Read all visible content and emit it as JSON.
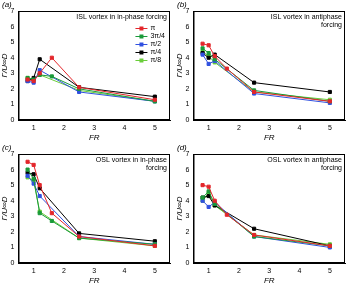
{
  "chart_data": [
    {
      "type": "line",
      "title": "(a)",
      "annotations": [
        "ISL vortex in in-phase forcing"
      ],
      "x_label": "FR",
      "y_label": "Γ/U∞D",
      "xlim": [
        0.5,
        5.5
      ],
      "xticks": [
        1,
        2,
        3,
        4,
        5
      ],
      "ylim": [
        0,
        7
      ],
      "yticks": [
        0,
        1,
        2,
        3,
        4,
        5,
        6,
        7
      ],
      "grid": false,
      "legend": "top right",
      "series": [
        {
          "name": "π",
          "color": "#e3262b",
          "marker": "square",
          "x": [
            0.8,
            1.0,
            1.2,
            1.6,
            2.5,
            5
          ],
          "values": [
            2.6,
            2.5,
            3.0,
            4.0,
            2.1,
            1.3
          ]
        },
        {
          "name": "3π/4",
          "color": "#1a9a3a",
          "marker": "square",
          "x": [
            0.8,
            1.0,
            1.2,
            1.6,
            2.5,
            5
          ],
          "values": [
            2.7,
            2.6,
            2.9,
            2.8,
            2.0,
            1.2
          ]
        },
        {
          "name": "π/2",
          "color": "#3050e0",
          "marker": "square",
          "x": [
            0.8,
            1.0,
            1.2,
            2.5,
            5
          ],
          "values": [
            2.5,
            2.4,
            3.2,
            1.8,
            1.2
          ]
        },
        {
          "name": "π/4",
          "color": "#000000",
          "marker": "square",
          "x": [
            0.8,
            1.0,
            1.2,
            2.5,
            5
          ],
          "values": [
            2.5,
            2.7,
            3.9,
            2.1,
            1.5
          ]
        },
        {
          "name": "π/8",
          "color": "#6acd3a",
          "marker": "square",
          "x": [
            0.8,
            1.0,
            1.2,
            2.5,
            5
          ],
          "values": [
            2.7,
            2.6,
            2.9,
            1.9,
            1.2
          ]
        }
      ]
    },
    {
      "type": "line",
      "title": "(b)",
      "annotations": [
        "ISL vortex in antiphase forcing"
      ],
      "x_label": "FR",
      "y_label": "Γ/U∞D",
      "xlim": [
        0.5,
        5.5
      ],
      "xticks": [
        1,
        2,
        3,
        4,
        5
      ],
      "ylim": [
        0,
        7
      ],
      "yticks": [
        0,
        1,
        2,
        3,
        4,
        5,
        6,
        7
      ],
      "grid": false,
      "series": [
        {
          "name": "π",
          "color": "#e3262b",
          "marker": "square",
          "x": [
            0.8,
            1.0,
            1.2,
            1.6,
            2.5,
            5
          ],
          "values": [
            4.9,
            4.8,
            4.1,
            3.3,
            1.8,
            1.2
          ]
        },
        {
          "name": "3π/4",
          "color": "#1a9a3a",
          "marker": "square",
          "x": [
            0.8,
            1.0,
            1.2,
            2.5,
            5
          ],
          "values": [
            4.6,
            4.3,
            3.9,
            1.9,
            1.2
          ]
        },
        {
          "name": "π/2",
          "color": "#3050e0",
          "marker": "square",
          "x": [
            0.8,
            1.0,
            1.2,
            2.5,
            5
          ],
          "values": [
            4.2,
            3.6,
            3.8,
            1.7,
            1.1
          ]
        },
        {
          "name": "π/4",
          "color": "#000000",
          "marker": "square",
          "x": [
            0.8,
            1.0,
            1.2,
            2.5,
            5
          ],
          "values": [
            4.3,
            4.0,
            4.2,
            2.4,
            1.8
          ]
        },
        {
          "name": "π/8",
          "color": "#6acd3a",
          "marker": "square",
          "x": [
            0.8,
            1.0,
            1.2,
            2.5,
            5
          ],
          "values": [
            4.4,
            4.1,
            3.7,
            1.8,
            1.3
          ]
        }
      ]
    },
    {
      "type": "line",
      "title": "(c)",
      "annotations": [
        "OSL vortex in in-phase forcing"
      ],
      "x_label": "FR",
      "y_label": "Γ/U∞D",
      "xlim": [
        0.5,
        5.5
      ],
      "xticks": [
        1,
        2,
        3,
        4,
        5
      ],
      "ylim": [
        0,
        7
      ],
      "yticks": [
        0,
        1,
        2,
        3,
        4,
        5,
        6,
        7
      ],
      "grid": false,
      "series": [
        {
          "name": "π",
          "color": "#e3262b",
          "marker": "square",
          "x": [
            0.8,
            1.0,
            1.2,
            1.6,
            2.5,
            5
          ],
          "values": [
            6.5,
            6.3,
            5.0,
            3.2,
            1.7,
            1.1
          ]
        },
        {
          "name": "3π/4",
          "color": "#1a9a3a",
          "marker": "square",
          "x": [
            0.8,
            1.0,
            1.2,
            1.6,
            2.5,
            5
          ],
          "values": [
            6.0,
            5.4,
            3.2,
            2.7,
            1.6,
            1.2
          ]
        },
        {
          "name": "π/2",
          "color": "#3050e0",
          "marker": "square",
          "x": [
            0.8,
            1.0,
            1.2,
            2.5,
            5
          ],
          "values": [
            5.6,
            5.1,
            4.3,
            1.7,
            1.2
          ]
        },
        {
          "name": "π/4",
          "color": "#000000",
          "marker": "square",
          "x": [
            0.8,
            1.0,
            1.2,
            2.5,
            5
          ],
          "values": [
            5.8,
            5.7,
            4.8,
            1.9,
            1.4
          ]
        },
        {
          "name": "π/8",
          "color": "#6acd3a",
          "marker": "square",
          "x": [
            0.8,
            1.0,
            1.2,
            2.5,
            5
          ],
          "values": [
            5.5,
            5.3,
            3.3,
            1.6,
            1.1
          ]
        }
      ]
    },
    {
      "type": "line",
      "title": "(d)",
      "annotations": [
        "OSL vortex in antiphase forcing"
      ],
      "x_label": "FR",
      "y_label": "Γ/U∞D",
      "xlim": [
        0.5,
        5.5
      ],
      "xticks": [
        1,
        2,
        3,
        4,
        5
      ],
      "ylim": [
        0,
        7
      ],
      "yticks": [
        0,
        1,
        2,
        3,
        4,
        5,
        6,
        7
      ],
      "grid": false,
      "series": [
        {
          "name": "π",
          "color": "#e3262b",
          "marker": "square",
          "x": [
            0.8,
            1.0,
            1.2,
            1.6,
            2.5,
            5
          ],
          "values": [
            5.0,
            4.9,
            4.0,
            3.1,
            1.8,
            1.1
          ]
        },
        {
          "name": "3π/4",
          "color": "#1a9a3a",
          "marker": "square",
          "x": [
            0.8,
            1.0,
            1.2,
            2.5,
            5
          ],
          "values": [
            4.2,
            4.6,
            3.8,
            1.7,
            1.1
          ]
        },
        {
          "name": "π/2",
          "color": "#3050e0",
          "marker": "square",
          "x": [
            0.8,
            1.0,
            1.2,
            2.5,
            5
          ],
          "values": [
            4.0,
            3.6,
            3.9,
            1.7,
            1.0
          ]
        },
        {
          "name": "π/4",
          "color": "#000000",
          "marker": "square",
          "x": [
            0.8,
            1.0,
            1.2,
            2.5,
            5
          ],
          "values": [
            4.2,
            4.3,
            3.7,
            2.2,
            1.1
          ]
        },
        {
          "name": "π/8",
          "color": "#6acd3a",
          "marker": "square",
          "x": [
            0.8,
            1.0,
            1.2,
            2.5,
            5
          ],
          "values": [
            4.0,
            4.5,
            3.7,
            1.8,
            1.2
          ]
        }
      ]
    }
  ]
}
